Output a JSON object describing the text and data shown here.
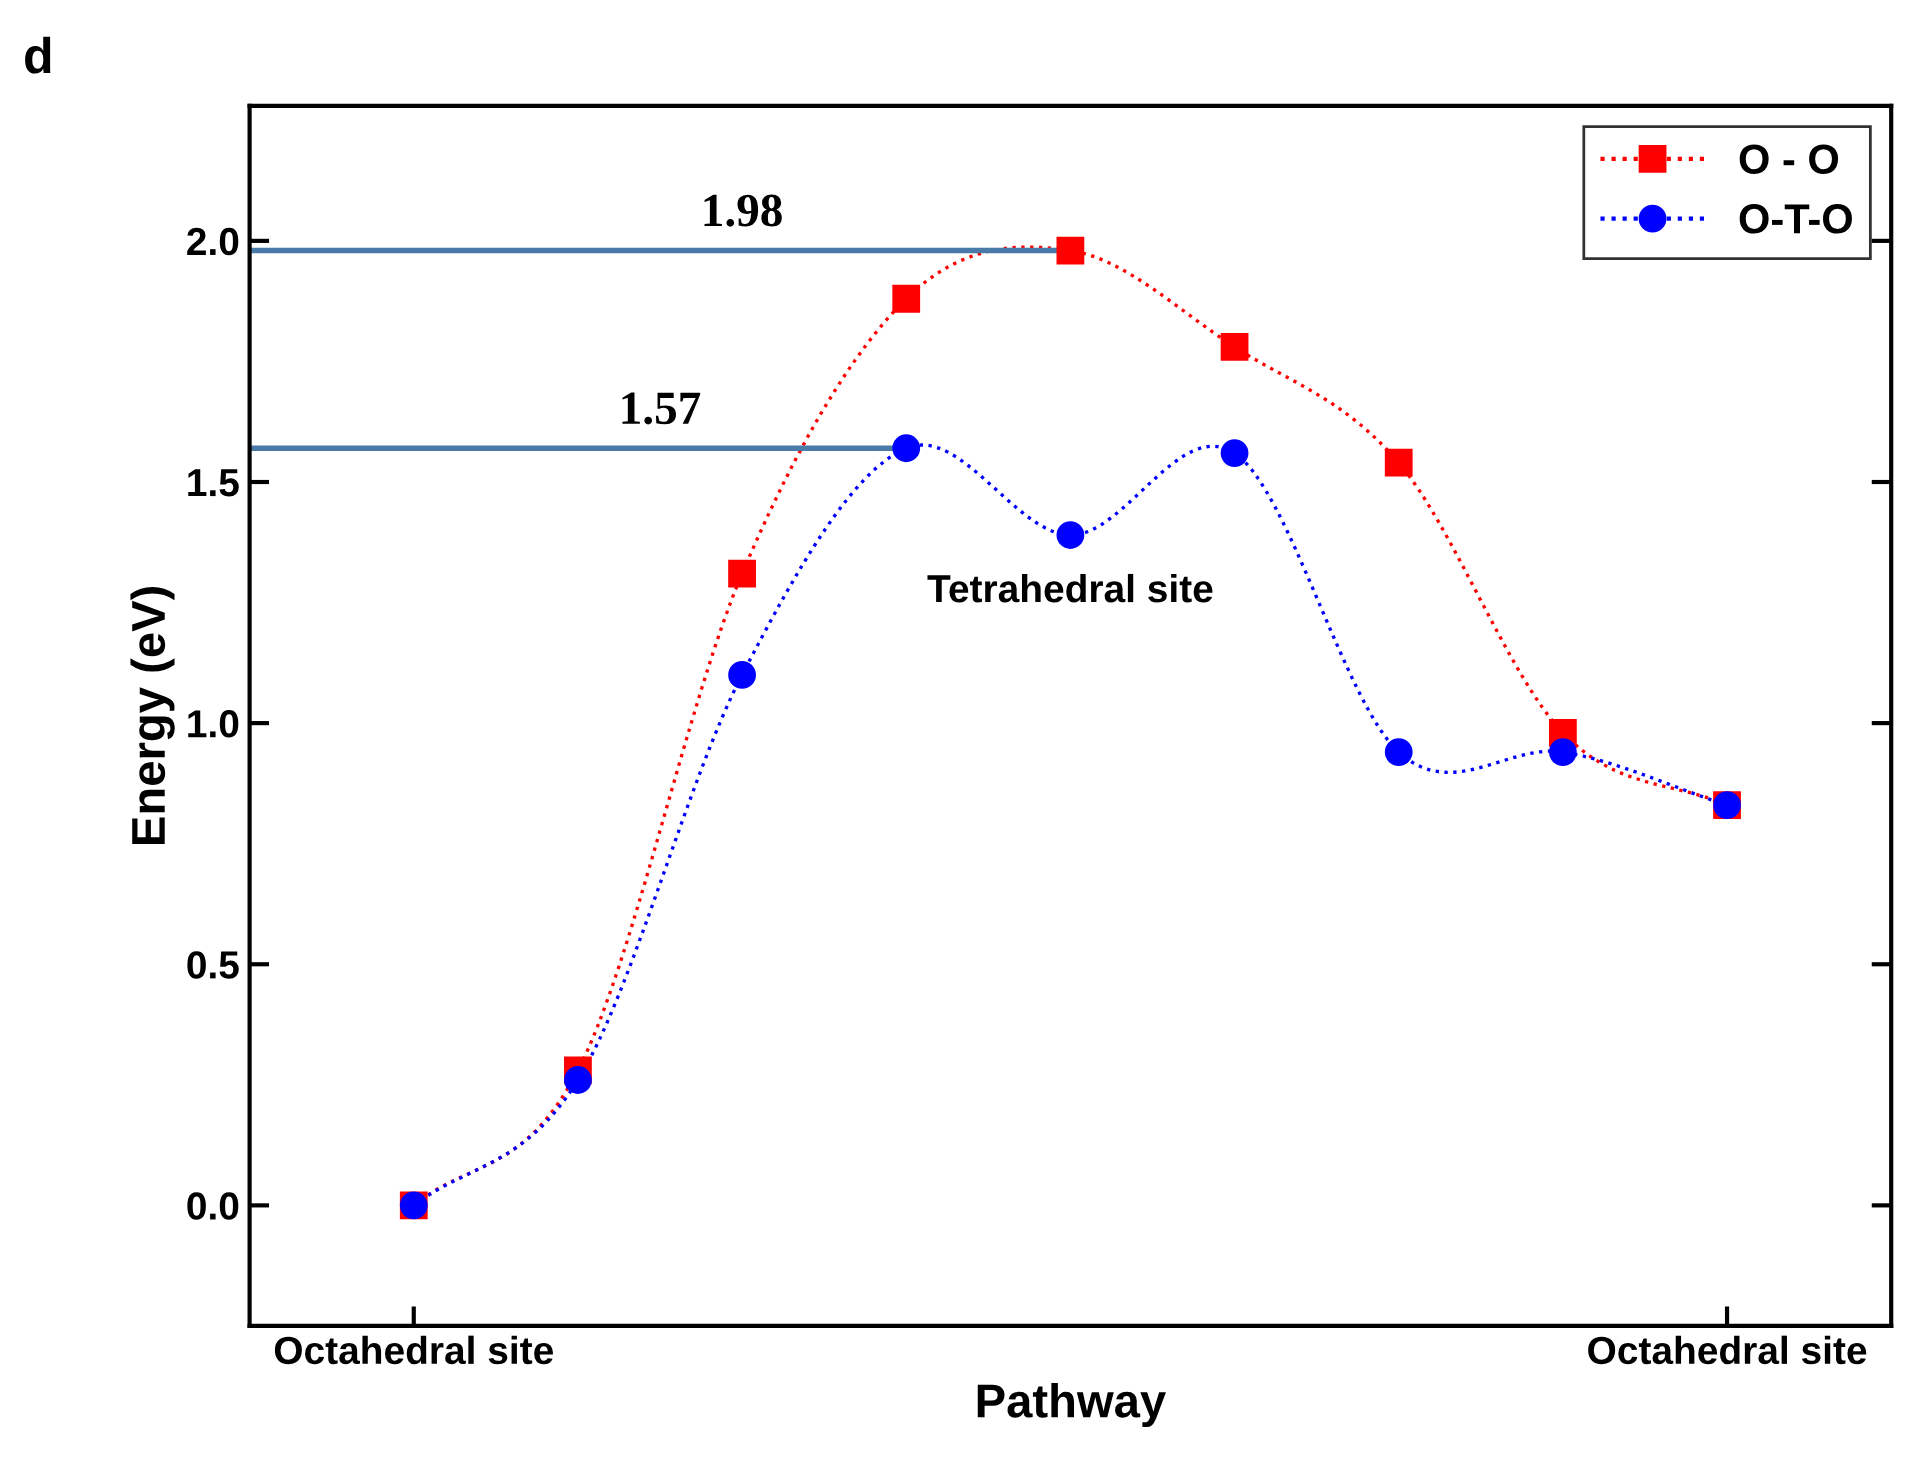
{
  "chart_data": {
    "type": "line",
    "xlabel": "Pathway",
    "ylabel": "Energy (eV)",
    "categories": [
      "Octahedral site",
      null,
      null,
      null,
      null,
      null,
      null,
      null,
      "Octahedral site"
    ],
    "series": [
      {
        "name": "O - O",
        "color": "#ff0000",
        "marker": "square",
        "values": [
          0,
          0.28,
          1.31,
          1.88,
          1.98,
          1.78,
          1.54,
          0.98,
          0.83
        ]
      },
      {
        "name": "O-T-O",
        "color": "#0000ff",
        "marker": "circle",
        "values": [
          0,
          0.26,
          1.1,
          1.57,
          1.39,
          1.56,
          0.94,
          0.94,
          0.83
        ]
      }
    ],
    "line_style": "dotted",
    "legend": "top right",
    "grid": false,
    "ylim": [
      -0.25,
      2.28
    ],
    "yticks": [
      {
        "value": 0,
        "label": "0.0"
      },
      {
        "value": 0.5,
        "label": "0.5"
      },
      {
        "value": 1,
        "label": "1.0"
      },
      {
        "value": 1.5,
        "label": "1.5"
      },
      {
        "value": 2,
        "label": "2.0"
      }
    ],
    "ref_lines": [
      {
        "axis": "y",
        "value": 1.98,
        "label": "1.98",
        "color": "#4a7aa8"
      },
      {
        "axis": "y",
        "value": 1.57,
        "label": "1.57",
        "color": "#4a7aa8"
      }
    ],
    "annotations": [
      "d",
      {
        "text": "Tetrahedral site",
        "y": 1.39
      }
    ]
  }
}
